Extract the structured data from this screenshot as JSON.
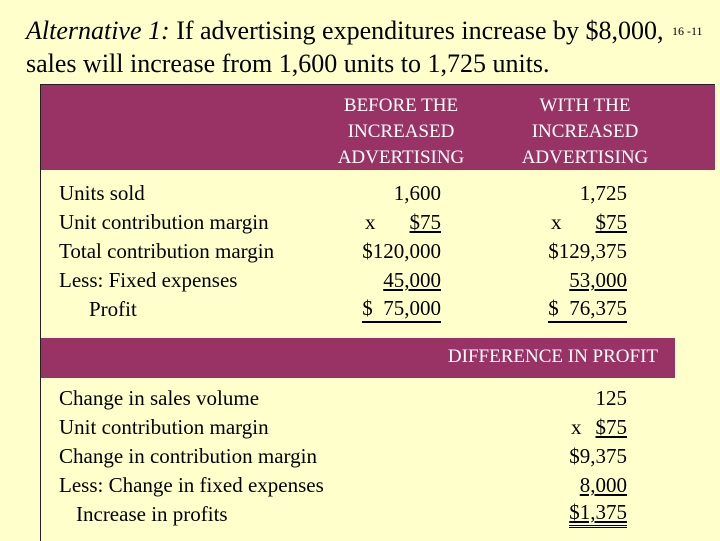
{
  "title": {
    "italic": "Alternative 1:",
    "rest": " If advertising expenditures increase by $8,000, sales will increase from 1,600 units to 1,725 units."
  },
  "slide_number": "16 -11",
  "table": {
    "col1_header": [
      "BEFORE THE",
      "INCREASED",
      "ADVERTISING"
    ],
    "col2_header": [
      "WITH THE",
      "INCREASED",
      "ADVERTISING"
    ],
    "rows": [
      {
        "label": "Units sold",
        "before": "1,600",
        "with": "1,725"
      },
      {
        "label": "Unit contribution margin",
        "before": "x      $75",
        "with": "x      $75"
      },
      {
        "label": "Total contribution margin",
        "before": "$120,000",
        "with": "$129,375"
      },
      {
        "label": "Less:  Fixed expenses",
        "before": "45,000",
        "with": "53,000"
      },
      {
        "label": "Profit",
        "before": "$  75,000",
        "with": "$  76,375"
      }
    ]
  },
  "difference": {
    "header": "DIFFERENCE IN PROFIT",
    "rows": [
      {
        "label": "Change in sales volume",
        "value": "125"
      },
      {
        "label": "Unit contribution margin",
        "value": "x   $75"
      },
      {
        "label": "Change in contribution margin",
        "value": "$9,375"
      },
      {
        "label": "Less:  Change in fixed expenses",
        "value": "8,000"
      },
      {
        "label": "Increase in profits",
        "value": "$1,375"
      }
    ]
  },
  "colors": {
    "background": "#ffffcc",
    "band": "#993366"
  }
}
